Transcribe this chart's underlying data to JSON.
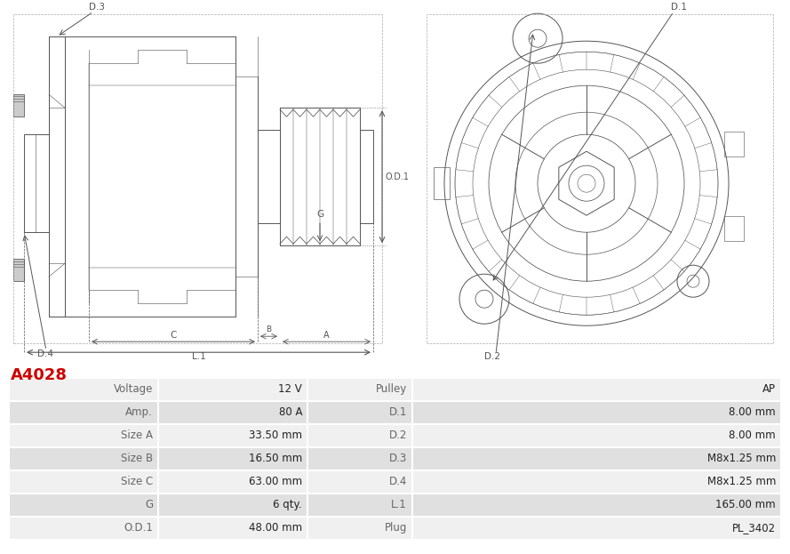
{
  "title": "A4028",
  "title_color": "#cc0000",
  "image_bg": "#ffffff",
  "table_row_bg_odd": "#f0f0f0",
  "table_row_bg_even": "#e0e0e0",
  "table_border_color": "#ffffff",
  "label_col_color": "#666666",
  "value_col_color": "#222222",
  "line_color": "#555555",
  "rows": [
    [
      "Voltage",
      "12 V",
      "Pulley",
      "AP"
    ],
    [
      "Amp.",
      "80 A",
      "D.1",
      "8.00 mm"
    ],
    [
      "Size A",
      "33.50 mm",
      "D.2",
      "8.00 mm"
    ],
    [
      "Size B",
      "16.50 mm",
      "D.3",
      "M8x1.25 mm"
    ],
    [
      "Size C",
      "63.00 mm",
      "D.4",
      "M8x1.25 mm"
    ],
    [
      "G",
      "6 qty.",
      "L.1",
      "165.00 mm"
    ],
    [
      "O.D.1",
      "48.00 mm",
      "Plug",
      "PL_3402"
    ]
  ]
}
